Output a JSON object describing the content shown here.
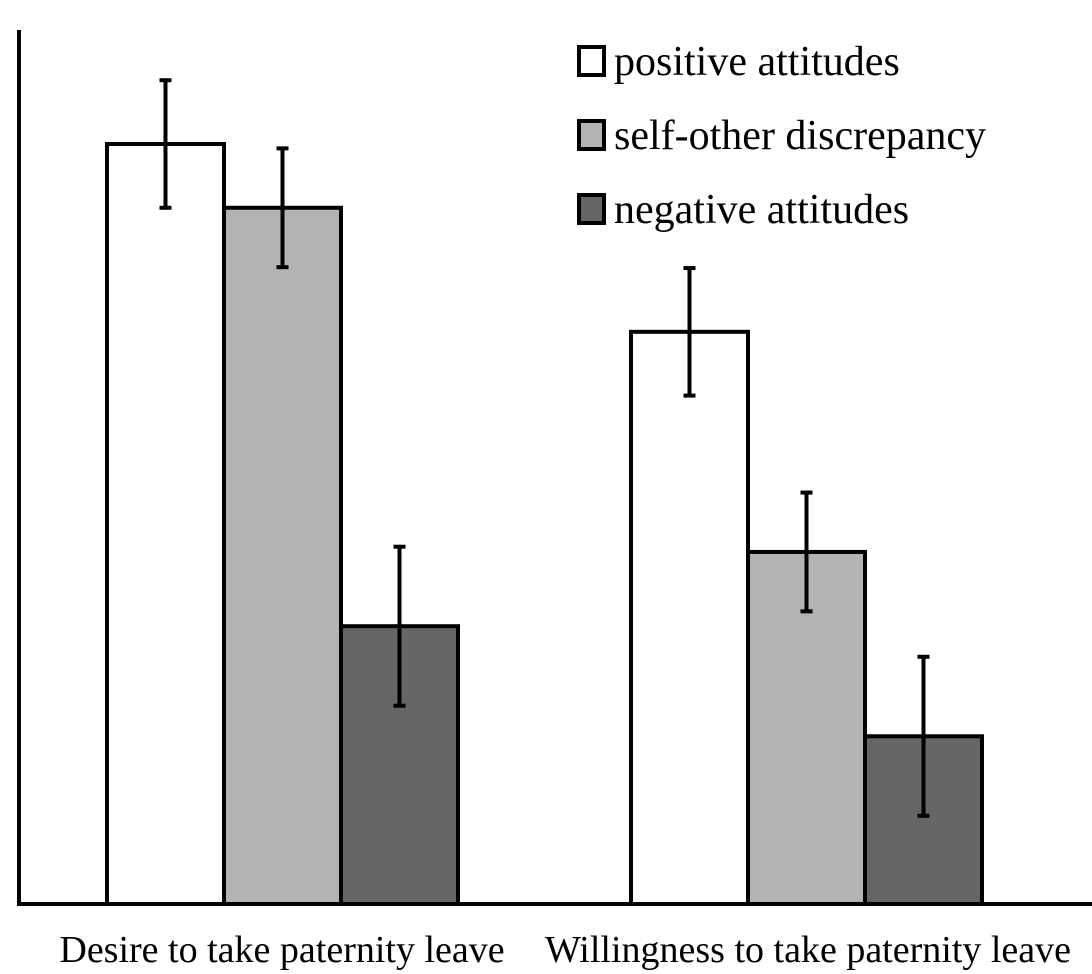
{
  "chart_data": {
    "type": "bar",
    "title": "",
    "xlabel": "",
    "ylabel": "",
    "ylim": [
      0,
      100
    ],
    "grid": false,
    "legend_position": "top-right",
    "categories": [
      "Desire to take paternity leave",
      "Willingness to take paternity leave"
    ],
    "series": [
      {
        "name": "positive attitudes",
        "color": "#ffffff",
        "values": [
          87,
          65.5
        ],
        "errors": [
          7.3,
          7.3
        ]
      },
      {
        "name": "self-other discrepancy",
        "color": "#b3b3b3",
        "values": [
          79.7,
          40.3
        ],
        "errors": [
          6.8,
          6.8
        ]
      },
      {
        "name": "negative attitudes",
        "color": "#666666",
        "values": [
          31.8,
          19.2
        ],
        "errors": [
          9.1,
          9.1
        ]
      }
    ]
  }
}
